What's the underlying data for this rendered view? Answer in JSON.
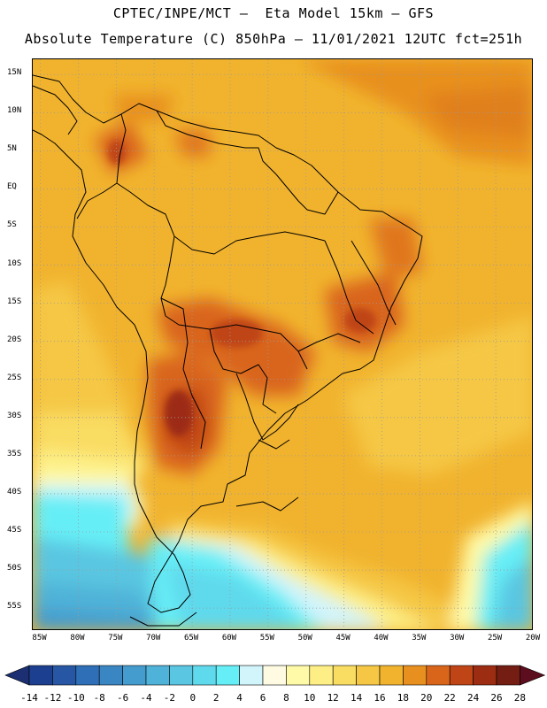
{
  "header": {
    "title_line1": "CPTEC/INPE/MCT –  Eta Model 15km – GFS",
    "title_line2": "Absolute Temperature (C) 850hPa – 11/01/2021 12UTC fct=251h"
  },
  "map": {
    "lon_range": [
      -86,
      -20
    ],
    "lat_range": [
      -58,
      17
    ],
    "lat_ticks": [
      {
        "label": "15N",
        "value": 15
      },
      {
        "label": "10N",
        "value": 10
      },
      {
        "label": "5N",
        "value": 5
      },
      {
        "label": "EQ",
        "value": 0
      },
      {
        "label": "5S",
        "value": -5
      },
      {
        "label": "10S",
        "value": -10
      },
      {
        "label": "15S",
        "value": -15
      },
      {
        "label": "20S",
        "value": -20
      },
      {
        "label": "25S",
        "value": -25
      },
      {
        "label": "30S",
        "value": -30
      },
      {
        "label": "35S",
        "value": -35
      },
      {
        "label": "40S",
        "value": -40
      },
      {
        "label": "45S",
        "value": -45
      },
      {
        "label": "50S",
        "value": -50
      },
      {
        "label": "55S",
        "value": -55
      }
    ],
    "lon_ticks": [
      {
        "label": "85W",
        "value": -85
      },
      {
        "label": "80W",
        "value": -80
      },
      {
        "label": "75W",
        "value": -75
      },
      {
        "label": "70W",
        "value": -70
      },
      {
        "label": "65W",
        "value": -65
      },
      {
        "label": "60W",
        "value": -60
      },
      {
        "label": "55W",
        "value": -55
      },
      {
        "label": "50W",
        "value": -50
      },
      {
        "label": "45W",
        "value": -45
      },
      {
        "label": "40W",
        "value": -40
      },
      {
        "label": "35W",
        "value": -35
      },
      {
        "label": "30W",
        "value": -30
      },
      {
        "label": "25W",
        "value": -25
      },
      {
        "label": "20W",
        "value": -20
      }
    ],
    "grid_color": "#9a9a9a",
    "coast_color": "#000000"
  },
  "colorbar": {
    "labels": [
      "-14",
      "-12",
      "-10",
      "-8",
      "-6",
      "-4",
      "-2",
      "0",
      "2",
      "4",
      "6",
      "8",
      "10",
      "12",
      "14",
      "16",
      "18",
      "20",
      "22",
      "24",
      "26",
      "28"
    ],
    "colors": [
      "#1d3f8f",
      "#2757a4",
      "#2f6fb7",
      "#3a86c3",
      "#449cce",
      "#4fb2d8",
      "#5ac6e1",
      "#5fd9ec",
      "#66eef6",
      "#d2f4fb",
      "#fffbe3",
      "#fffaa8",
      "#fdef86",
      "#f9dc62",
      "#f5c744",
      "#f1b32e",
      "#e8901f",
      "#d9651b",
      "#bf4416",
      "#9c2c12",
      "#741d12"
    ],
    "under_color": "#1b2f72",
    "over_color": "#5c0d1e"
  }
}
